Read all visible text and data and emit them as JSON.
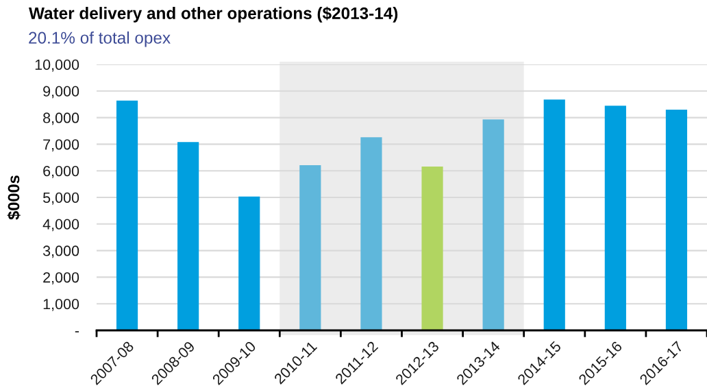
{
  "chart_data": {
    "type": "bar",
    "title": "Water delivery and other operations ($2013-14)",
    "subtitle": "20.1% of total opex",
    "ylabel": "$000s",
    "categories": [
      "2007-08",
      "2008-09",
      "2009-10",
      "2010-11",
      "2011-12",
      "2012-13",
      "2013-14",
      "2014-15",
      "2015-16",
      "2016-17"
    ],
    "values": [
      8640,
      7080,
      5030,
      6210,
      7260,
      6160,
      7930,
      8680,
      8450,
      8300
    ],
    "colors": [
      "#009fdf",
      "#009fdf",
      "#009fdf",
      "#5fb7db",
      "#5fb7db",
      "#b1d561",
      "#5fb7db",
      "#009fdf",
      "#009fdf",
      "#009fdf"
    ],
    "ylim": [
      0,
      10000
    ],
    "yticks": [
      {
        "value": 0,
        "label": "-"
      },
      {
        "value": 1000,
        "label": "1,000"
      },
      {
        "value": 2000,
        "label": "2,000"
      },
      {
        "value": 3000,
        "label": "3,000"
      },
      {
        "value": 4000,
        "label": "4,000"
      },
      {
        "value": 5000,
        "label": "5,000"
      },
      {
        "value": 6000,
        "label": "6,000"
      },
      {
        "value": 7000,
        "label": "7,000"
      },
      {
        "value": 8000,
        "label": "8,000"
      },
      {
        "value": 9000,
        "label": "9,000"
      },
      {
        "value": 10000,
        "label": "10,000"
      }
    ],
    "grid": "y",
    "bands": [
      {
        "axis": "x",
        "from": "2010-11",
        "to": "2013-14",
        "color": "#ececec"
      }
    ]
  }
}
